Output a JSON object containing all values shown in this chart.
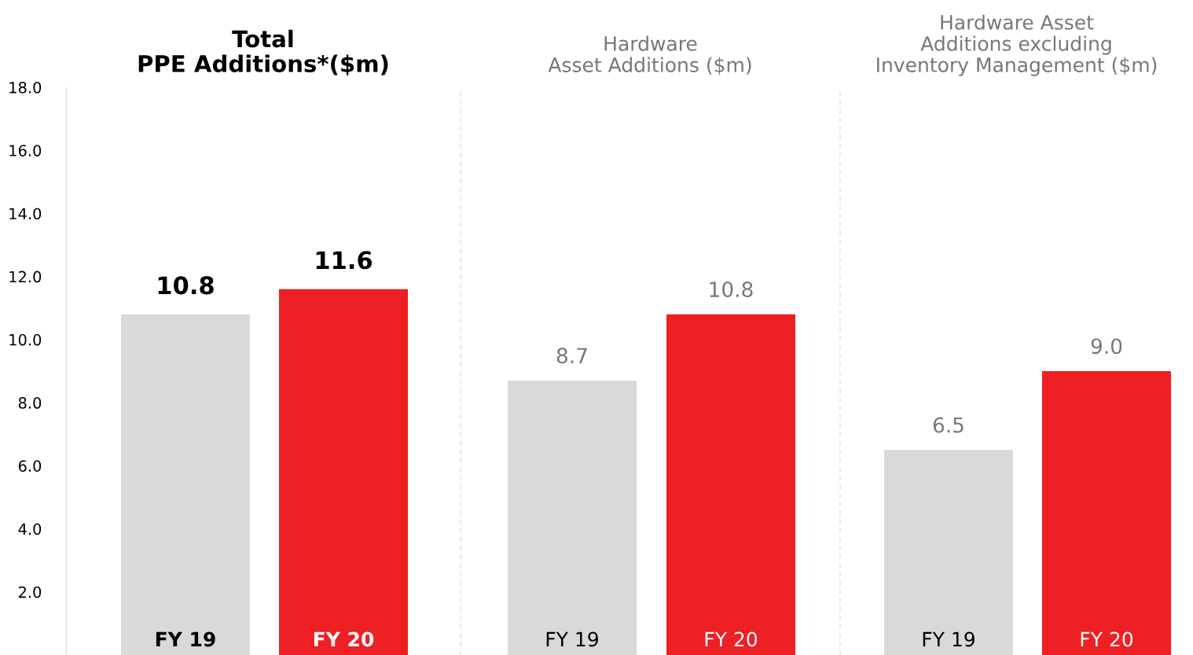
{
  "chart_data": [
    {
      "type": "bar",
      "title": "Total\nPPE Additions*($m)",
      "categories": [
        "FY 19",
        "FY 20"
      ],
      "values": [
        10.8,
        11.6
      ],
      "value_labels": [
        "10.8",
        "11.6"
      ],
      "colors": [
        "#d9d9d9",
        "#ed2024"
      ],
      "ylim": [
        0,
        18
      ],
      "yticks": [
        {
          "value": 2,
          "label": "2.0"
        },
        {
          "value": 4,
          "label": "4.0"
        },
        {
          "value": 6,
          "label": "6.0"
        },
        {
          "value": 8,
          "label": "8.0"
        },
        {
          "value": 10,
          "label": "10.0"
        },
        {
          "value": 12,
          "label": "12.0"
        },
        {
          "value": 14,
          "label": "14.0"
        },
        {
          "value": 16,
          "label": "16.0"
        },
        {
          "value": 18,
          "label": "18.0"
        }
      ],
      "grid": false,
      "legend": false
    },
    {
      "type": "bar",
      "title": "Hardware\nAsset Additions ($m)",
      "categories": [
        "FY 19",
        "FY 20"
      ],
      "values": [
        8.7,
        10.8
      ],
      "value_labels": [
        "8.7",
        "10.8"
      ],
      "colors": [
        "#d9d9d9",
        "#ed2024"
      ],
      "ylim": [
        0,
        18
      ],
      "tick_labels": "x",
      "grid": false,
      "legend": false
    },
    {
      "type": "bar",
      "title": "Hardware Asset\nAdditions excluding\nInventory Management ($m)",
      "categories": [
        "FY 19",
        "FY 20"
      ],
      "values": [
        6.5,
        9.0
      ],
      "value_labels": [
        "6.5",
        "9.0"
      ],
      "colors": [
        "#d9d9d9",
        "#ed2024"
      ],
      "ylim": [
        0,
        18
      ],
      "tick_labels": "x",
      "grid": false,
      "legend": false
    }
  ]
}
